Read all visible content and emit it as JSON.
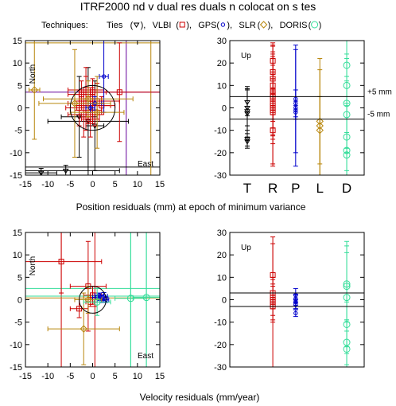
{
  "title": "ITRF2000  nd v dual res duals  n colocat on s tes",
  "legend": {
    "prefix": "Techniques: ",
    "items": [
      {
        "name": "Ties",
        "symbol": "triangle-down",
        "color": "#000000"
      },
      {
        "name": "VLBI",
        "symbol": "square",
        "color": "#cc0000"
      },
      {
        "name": "GPS",
        "symbol": "circle-small",
        "color": "#0000cc"
      },
      {
        "name": "SLR",
        "symbol": "diamond",
        "color": "#b8860b"
      },
      {
        "name": "DORIS",
        "symbol": "circle",
        "color": "#33dd99"
      }
    ]
  },
  "section_labels": {
    "position": "Position residuals (mm) at epoch of minimum variance",
    "velocity": "Velocity residuals (mm/year)"
  },
  "colors": {
    "ties": "#000000",
    "vlbi": "#cc0000",
    "gps": "#0000cc",
    "slr": "#b8860b",
    "doris": "#33dd99",
    "purple": "#660099"
  },
  "chart_data": [
    {
      "id": "position-horizontal",
      "type": "scatter",
      "xlim": [
        -15,
        15
      ],
      "ylim": [
        -15,
        15
      ],
      "xticks": [
        -15,
        -10,
        -5,
        0,
        5,
        10,
        15
      ],
      "yticks": [
        -15,
        -10,
        -5,
        0,
        5,
        10,
        15
      ],
      "labels": {
        "north": "North",
        "east": "East"
      },
      "circle_radius": 5,
      "points": [
        {
          "tech": "ties",
          "x": -11.5,
          "y": -14.5,
          "xerr": 3.5,
          "yerr": 1.0
        },
        {
          "tech": "ties",
          "x": -6,
          "y": -14,
          "xerr": 12,
          "yerr": 1.2
        },
        {
          "tech": "ties",
          "x": -1,
          "y": -3,
          "xerr": 9,
          "yerr": 12
        },
        {
          "tech": "ties",
          "x": -3,
          "y": -2,
          "xerr": 4,
          "yerr": 9
        },
        {
          "tech": "ties",
          "x": 0.5,
          "y": -4,
          "xerr": 2,
          "yerr": 10
        },
        {
          "tech": "vlbi",
          "x": -2.5,
          "y": 3,
          "xerr": 3,
          "yerr": 3
        },
        {
          "tech": "vlbi",
          "x": -1.5,
          "y": 1,
          "xerr": 4,
          "yerr": 6
        },
        {
          "tech": "vlbi",
          "x": -0.5,
          "y": 2,
          "xerr": 2.5,
          "yerr": 2.5
        },
        {
          "tech": "vlbi",
          "x": -1,
          "y": -0.5,
          "xerr": 3,
          "yerr": 3
        },
        {
          "tech": "vlbi",
          "x": 0,
          "y": 0.5,
          "xerr": 4,
          "yerr": 4
        },
        {
          "tech": "vlbi",
          "x": -2,
          "y": -1.5,
          "xerr": 3.5,
          "yerr": 5
        },
        {
          "tech": "vlbi",
          "x": 0.5,
          "y": -1,
          "xerr": 2,
          "yerr": 3
        },
        {
          "tech": "vlbi",
          "x": 1,
          "y": 1.5,
          "xerr": 5,
          "yerr": 4
        },
        {
          "tech": "vlbi",
          "x": -3,
          "y": 0,
          "xerr": 3,
          "yerr": 4
        },
        {
          "tech": "vlbi",
          "x": 2,
          "y": 0.5,
          "xerr": 3,
          "yerr": 2
        },
        {
          "tech": "vlbi",
          "x": -1.5,
          "y": 4,
          "xerr": 4,
          "yerr": 5
        },
        {
          "tech": "vlbi",
          "x": 0,
          "y": 3.5,
          "xerr": 3,
          "yerr": 3
        },
        {
          "tech": "vlbi",
          "x": 6,
          "y": 3.5,
          "xerr": 9,
          "yerr": 11
        },
        {
          "tech": "vlbi",
          "x": -0.5,
          "y": -2.5,
          "xerr": 2,
          "yerr": 4
        },
        {
          "tech": "gps",
          "x": 2.5,
          "y": 7,
          "xerr": 1,
          "yerr": 8
        },
        {
          "tech": "gps",
          "x": 0.5,
          "y": 1,
          "xerr": 1.5,
          "yerr": 1.5
        },
        {
          "tech": "gps",
          "x": -0.5,
          "y": 0,
          "xerr": 1,
          "yerr": 1
        },
        {
          "tech": "slr",
          "x": -13,
          "y": 4,
          "xerr": 1.2,
          "yerr": 11
        },
        {
          "tech": "slr",
          "x": -4,
          "y": 1,
          "xerr": 8,
          "yerr": 12
        },
        {
          "tech": "slr",
          "x": -1,
          "y": 2,
          "xerr": 10,
          "yerr": 4
        },
        {
          "tech": "slr",
          "x": 1,
          "y": -1,
          "xerr": 6,
          "yerr": 8
        }
      ],
      "lines": [
        {
          "tech": "purple",
          "orient": "v",
          "value": 7.5
        },
        {
          "tech": "purple",
          "orient": "h",
          "value": 3.5
        },
        {
          "tech": "ties",
          "orient": "h",
          "value": -13.2
        },
        {
          "tech": "slr",
          "orient": "h",
          "value": 14.5
        },
        {
          "tech": "slr",
          "orient": "v",
          "value": 13
        }
      ]
    },
    {
      "id": "position-up",
      "type": "scatter",
      "xlim": [
        0,
        5
      ],
      "ylim": [
        -30,
        30
      ],
      "yticks": [
        -30,
        -20,
        -10,
        0,
        10,
        20,
        30
      ],
      "label": "Up",
      "reference_lines": [
        5,
        -5
      ],
      "reference_labels": [
        "+5 mm",
        "-5 mm"
      ],
      "columns": [
        {
          "tech": "ties",
          "label": "T",
          "x": 0.65,
          "points": [
            {
              "y": -2.5,
              "err": 12
            },
            {
              "y": -1.5,
              "err": 10
            },
            {
              "y": 2.5,
              "err": 6
            },
            {
              "y": -14,
              "err": 4
            },
            {
              "y": -15,
              "err": 2
            },
            {
              "y": 0,
              "err": 8
            }
          ]
        },
        {
          "tech": "vlbi",
          "label": "R",
          "x": 1.6,
          "points": [
            {
              "y": 21,
              "err": 8
            },
            {
              "y": 16,
              "err": 12
            },
            {
              "y": 13,
              "err": 10
            },
            {
              "y": 10,
              "err": 15
            },
            {
              "y": 7.5,
              "err": 20
            },
            {
              "y": 6,
              "err": 9
            },
            {
              "y": 5,
              "err": 14
            },
            {
              "y": 4,
              "err": 18
            },
            {
              "y": 2,
              "err": 11
            },
            {
              "y": 1,
              "err": 7
            },
            {
              "y": 0,
              "err": 16
            },
            {
              "y": -1,
              "err": 25
            },
            {
              "y": -2,
              "err": 10
            },
            {
              "y": -10,
              "err": 15
            }
          ]
        },
        {
          "tech": "gps",
          "label": "P",
          "x": 2.45,
          "points": [
            {
              "y": 4,
              "err": 24
            },
            {
              "y": 2,
              "err": 6
            },
            {
              "y": 0,
              "err": 26
            },
            {
              "y": -1,
              "err": 4
            },
            {
              "y": -2,
              "err": 3
            }
          ]
        },
        {
          "tech": "slr",
          "label": "L",
          "x": 3.35,
          "points": [
            {
              "y": -6,
              "err": 28
            },
            {
              "y": -8,
              "err": 25
            },
            {
              "y": -10,
              "err": 15
            }
          ]
        },
        {
          "tech": "doris",
          "label": "D",
          "x": 4.35,
          "points": [
            {
              "y": 19,
              "err": 5
            },
            {
              "y": 10,
              "err": 30
            },
            {
              "y": 2,
              "err": 20
            },
            {
              "y": -3,
              "err": 15
            },
            {
              "y": -13,
              "err": 15
            },
            {
              "y": -19,
              "err": 20
            },
            {
              "y": -21,
              "err": 10
            }
          ]
        }
      ]
    },
    {
      "id": "velocity-horizontal",
      "type": "scatter",
      "xlim": [
        -15,
        15
      ],
      "ylim": [
        -15,
        15
      ],
      "xticks": [
        -15,
        -10,
        -5,
        0,
        5,
        10,
        15
      ],
      "yticks": [
        -15,
        -10,
        -5,
        0,
        5,
        10,
        15
      ],
      "labels": {
        "north": "North",
        "east": "East"
      },
      "circle_radius": 3,
      "points": [
        {
          "tech": "vlbi",
          "x": -7,
          "y": 8.5,
          "xerr": 9,
          "yerr": 7
        },
        {
          "tech": "vlbi",
          "x": -3,
          "y": -2,
          "xerr": 2,
          "yerr": 2
        },
        {
          "tech": "vlbi",
          "x": -1,
          "y": 3,
          "xerr": 4,
          "yerr": 10
        },
        {
          "tech": "vlbi",
          "x": 0,
          "y": 1,
          "xerr": 2,
          "yerr": 2
        },
        {
          "tech": "vlbi",
          "x": 0.5,
          "y": 0,
          "xerr": 1.5,
          "yerr": 1.5
        },
        {
          "tech": "vlbi",
          "x": -0.5,
          "y": -0.5,
          "xerr": 1,
          "yerr": 1
        },
        {
          "tech": "gps",
          "x": 1,
          "y": 0.5,
          "xerr": 1,
          "yerr": 0.5
        },
        {
          "tech": "gps",
          "x": 2,
          "y": -0.2,
          "xerr": 1,
          "yerr": 0.4
        },
        {
          "tech": "gps",
          "x": 1.5,
          "y": 1,
          "xerr": 1,
          "yerr": 0.5
        },
        {
          "tech": "gps",
          "x": 3,
          "y": 0,
          "xerr": 0.6,
          "yerr": 0.6
        },
        {
          "tech": "gps",
          "x": 2.5,
          "y": 0.8,
          "xerr": 0.8,
          "yerr": 0.8
        },
        {
          "tech": "slr",
          "x": -2,
          "y": -6.5,
          "xerr": 8,
          "yerr": 8
        },
        {
          "tech": "slr",
          "x": -1,
          "y": 0,
          "xerr": 3,
          "yerr": 3
        },
        {
          "tech": "doris",
          "x": 8.5,
          "y": 0.3,
          "xerr": 3.5,
          "yerr": 16
        },
        {
          "tech": "doris",
          "x": 12,
          "y": 0.5,
          "xerr": 3,
          "yerr": 16
        },
        {
          "tech": "doris",
          "x": 1,
          "y": -0.5,
          "xerr": 3,
          "yerr": 3
        }
      ],
      "lines": [
        {
          "tech": "vlbi",
          "orient": "v",
          "value": -7
        },
        {
          "tech": "doris",
          "orient": "h",
          "value": 2.5
        },
        {
          "tech": "doris",
          "orient": "h",
          "value": 0.8
        },
        {
          "tech": "slr",
          "orient": "h",
          "value": 0.4
        },
        {
          "tech": "vlbi",
          "orient": "v",
          "value": 0.5
        },
        {
          "tech": "doris",
          "orient": "v",
          "value": 8.5
        },
        {
          "tech": "doris",
          "orient": "v",
          "value": 12
        }
      ]
    },
    {
      "id": "velocity-up",
      "type": "scatter",
      "xlim": [
        0,
        5
      ],
      "ylim": [
        -30,
        30
      ],
      "yticks": [
        -30,
        -20,
        -10,
        0,
        10,
        20,
        30
      ],
      "label": "Up",
      "reference_lines": [
        3,
        -3
      ],
      "columns": [
        {
          "tech": "vlbi",
          "label": "",
          "x": 1.6,
          "points": [
            {
              "y": 11,
              "err": 14
            },
            {
              "y": 3,
              "err": 6
            },
            {
              "y": 1,
              "err": 5
            },
            {
              "y": 0,
              "err": 10
            },
            {
              "y": -1,
              "err": 8
            },
            {
              "y": -2,
              "err": 30
            },
            {
              "y": -3,
              "err": 4
            }
          ]
        },
        {
          "tech": "gps",
          "label": "",
          "x": 2.45,
          "points": [
            {
              "y": 2,
              "err": 3
            },
            {
              "y": 0.5,
              "err": 2
            },
            {
              "y": 0,
              "err": 2.5
            },
            {
              "y": -1,
              "err": 3
            },
            {
              "y": -2,
              "err": 2
            },
            {
              "y": -6,
              "err": 1.5
            }
          ]
        },
        {
          "tech": "doris",
          "label": "",
          "x": 4.35,
          "points": [
            {
              "y": 7,
              "err": 17
            },
            {
              "y": 6,
              "err": 15
            },
            {
              "y": 1,
              "err": 25
            },
            {
              "y": -11,
              "err": 10
            },
            {
              "y": -19,
              "err": 10
            },
            {
              "y": -22,
              "err": 8
            }
          ]
        }
      ]
    }
  ]
}
